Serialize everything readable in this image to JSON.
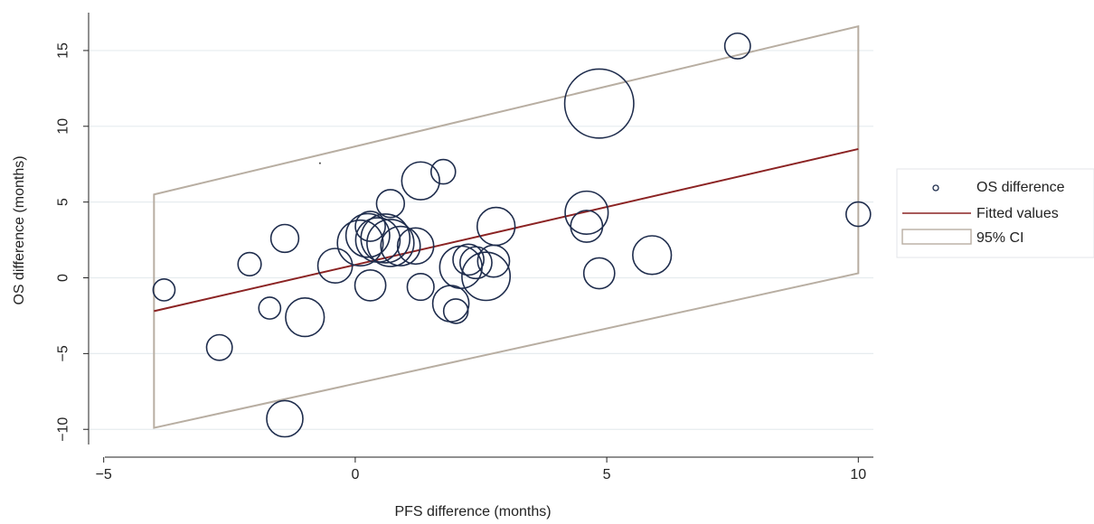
{
  "chart_data": {
    "type": "scatter",
    "title": "",
    "xlabel": "PFS difference (months)",
    "ylabel": "OS difference (months)",
    "xlim": [
      -5.3,
      10.3
    ],
    "ylim": [
      -11,
      17.5
    ],
    "xticks": [
      {
        "value": -5,
        "label": "−5"
      },
      {
        "value": 0,
        "label": "0"
      },
      {
        "value": 5,
        "label": "5"
      },
      {
        "value": 10,
        "label": "10"
      }
    ],
    "yticks": [
      {
        "value": -10,
        "label": "−10"
      },
      {
        "value": -5,
        "label": "−5"
      },
      {
        "value": 0,
        "label": "0"
      },
      {
        "value": 5,
        "label": "5"
      },
      {
        "value": 10,
        "label": "10"
      },
      {
        "value": 15,
        "label": "15"
      }
    ],
    "grid": "horizontal",
    "legend_position": "right",
    "legend": [
      {
        "label": "OS difference",
        "kind": "marker"
      },
      {
        "label": "Fitted values",
        "kind": "line"
      },
      {
        "label": "95% CI",
        "kind": "band"
      }
    ],
    "colors": {
      "markers": "#1f2d4d",
      "fitted": "#8b2323",
      "ci": "#b8aea2",
      "grid": "#e6ecef",
      "axis": "#222222"
    },
    "series": [
      {
        "name": "OS difference",
        "type": "bubble",
        "points": [
          {
            "x": -3.8,
            "y": -0.8,
            "size": 0.8
          },
          {
            "x": -2.7,
            "y": -4.6,
            "size": 1.1
          },
          {
            "x": -2.1,
            "y": 0.9,
            "size": 0.9
          },
          {
            "x": -1.7,
            "y": -2.0,
            "size": 0.8
          },
          {
            "x": -1.4,
            "y": 2.6,
            "size": 1.3
          },
          {
            "x": -1.4,
            "y": -9.3,
            "size": 2.2
          },
          {
            "x": -1.0,
            "y": -2.6,
            "size": 2.5
          },
          {
            "x": -0.4,
            "y": 0.8,
            "size": 2.0
          },
          {
            "x": 0.1,
            "y": 2.3,
            "size": 3.5
          },
          {
            "x": 0.25,
            "y": 2.8,
            "size": 3.2
          },
          {
            "x": 0.3,
            "y": 3.4,
            "size": 1.5
          },
          {
            "x": 0.45,
            "y": 2.5,
            "size": 3.3
          },
          {
            "x": 0.6,
            "y": 2.6,
            "size": 4.0
          },
          {
            "x": 0.7,
            "y": 2.3,
            "size": 3.7
          },
          {
            "x": 0.7,
            "y": 4.9,
            "size": 1.3
          },
          {
            "x": 0.9,
            "y": 2.1,
            "size": 2.6
          },
          {
            "x": 0.3,
            "y": -0.5,
            "size": 1.6
          },
          {
            "x": 1.2,
            "y": 2.1,
            "size": 2.2
          },
          {
            "x": 1.3,
            "y": -0.6,
            "size": 1.2
          },
          {
            "x": 1.3,
            "y": 6.4,
            "size": 2.4
          },
          {
            "x": 1.75,
            "y": 7.0,
            "size": 1.0
          },
          {
            "x": 1.9,
            "y": -1.7,
            "size": 2.2
          },
          {
            "x": 2.0,
            "y": -2.2,
            "size": 1.0
          },
          {
            "x": 2.1,
            "y": 0.7,
            "size": 3.0
          },
          {
            "x": 2.25,
            "y": 1.2,
            "size": 1.6
          },
          {
            "x": 2.4,
            "y": 1.0,
            "size": 1.7
          },
          {
            "x": 2.6,
            "y": 0.1,
            "size": 3.9
          },
          {
            "x": 2.75,
            "y": 1.1,
            "size": 1.7
          },
          {
            "x": 2.8,
            "y": 3.4,
            "size": 2.4
          },
          {
            "x": 4.6,
            "y": 4.3,
            "size": 3.1
          },
          {
            "x": 4.6,
            "y": 3.4,
            "size": 1.7
          },
          {
            "x": 4.85,
            "y": 0.3,
            "size": 1.6
          },
          {
            "x": 4.85,
            "y": 11.5,
            "size": 8.0
          },
          {
            "x": 5.9,
            "y": 1.5,
            "size": 2.5
          },
          {
            "x": 7.6,
            "y": 15.3,
            "size": 1.1
          },
          {
            "x": 10.0,
            "y": 4.2,
            "size": 1.0
          }
        ]
      },
      {
        "name": "Fitted values",
        "type": "line",
        "x": [
          -4,
          10
        ],
        "y": [
          -2.2,
          8.5
        ]
      },
      {
        "name": "95% CI",
        "type": "band",
        "x": [
          -4,
          10
        ],
        "upper": [
          5.5,
          16.6
        ],
        "lower": [
          -9.9,
          0.3
        ]
      }
    ],
    "annotations": [
      {
        "x": -0.7,
        "y": 7.3,
        "text": "·"
      }
    ]
  }
}
